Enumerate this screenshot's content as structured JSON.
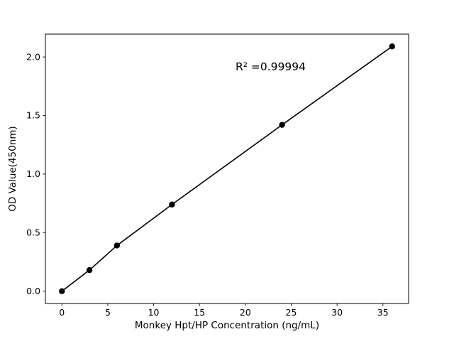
{
  "chart_data": {
    "type": "line",
    "series_name": "standard-curve",
    "x": [
      0,
      3,
      6,
      12,
      24,
      36
    ],
    "y": [
      0.0,
      0.18,
      0.39,
      0.74,
      1.42,
      2.09
    ],
    "title": "",
    "xlabel": "Monkey Hpt/HP Concentration (ng/mL)",
    "ylabel": "OD Value(450nm)",
    "xlim": [
      -1.8,
      37.8
    ],
    "ylim": [
      -0.105,
      2.195
    ],
    "xticks": {
      "values": [
        0,
        5,
        10,
        15,
        20,
        25,
        30,
        35
      ],
      "labels": [
        "0",
        "5",
        "10",
        "15",
        "20",
        "25",
        "30",
        "35"
      ]
    },
    "yticks": {
      "values": [
        0.0,
        0.5,
        1.0,
        1.5,
        2.0
      ],
      "labels": [
        "0.0",
        "0.5",
        "1.0",
        "1.5",
        "2.0"
      ]
    },
    "annotation": {
      "text": "R² =0.99994",
      "fx": 0.62,
      "fy": 0.135
    },
    "grid": false,
    "legend": "none",
    "marker": "circle",
    "marker_color": "#000000",
    "line_color": "#000000",
    "axis_color": "#000000",
    "background": "#ffffff"
  }
}
